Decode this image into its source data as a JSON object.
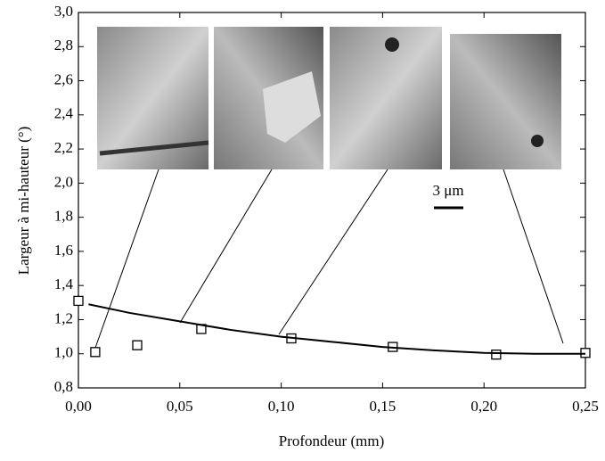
{
  "chart_data": {
    "type": "scatter",
    "x_label": "Profondeur (mm)",
    "y_label": "Largeur à mi-hauteur (°)",
    "annotation": "3 μm",
    "series": [
      {
        "type": "scatter",
        "color": "#000000",
        "x": [
          0.0,
          0.0083,
          0.029,
          0.0606,
          0.105,
          0.155,
          0.206,
          0.25
        ],
        "values": [
          1.31,
          1.01,
          1.05,
          1.145,
          1.09,
          1.04,
          0.995,
          1.005
        ]
      },
      {
        "type": "line",
        "color": "#000000",
        "x": [
          0.005,
          0.025,
          0.05,
          0.075,
          0.1,
          0.125,
          0.15,
          0.175,
          0.2,
          0.225,
          0.25
        ],
        "values": [
          1.29,
          1.24,
          1.19,
          1.14,
          1.1,
          1.07,
          1.04,
          1.02,
          1.005,
          1.0,
          1.0
        ]
      }
    ],
    "xlim": [
      0,
      0.25
    ],
    "ylim": [
      0.8,
      3.0
    ],
    "xticks": [
      {
        "value": 0,
        "label": "0,00"
      },
      {
        "value": 0.05,
        "label": "0,05"
      },
      {
        "value": 0.1,
        "label": "0,10"
      },
      {
        "value": 0.15,
        "label": "0,15"
      },
      {
        "value": 0.2,
        "label": "0,20"
      },
      {
        "value": 0.25,
        "label": "0,25"
      }
    ],
    "yticks": [
      {
        "value": 0.8,
        "label": "0,8"
      },
      {
        "value": 1.0,
        "label": "1,0"
      },
      {
        "value": 1.2,
        "label": "1,2"
      },
      {
        "value": 1.4,
        "label": "1,4"
      },
      {
        "value": 1.6,
        "label": "1,6"
      },
      {
        "value": 1.8,
        "label": "1,8"
      },
      {
        "value": 2.0,
        "label": "2,0"
      },
      {
        "value": 2.2,
        "label": "2,2"
      },
      {
        "value": 2.4,
        "label": "2,4"
      },
      {
        "value": 2.6,
        "label": "2,6"
      },
      {
        "value": 2.8,
        "label": "2,8"
      },
      {
        "value": 3.0,
        "label": "3,0"
      }
    ]
  }
}
